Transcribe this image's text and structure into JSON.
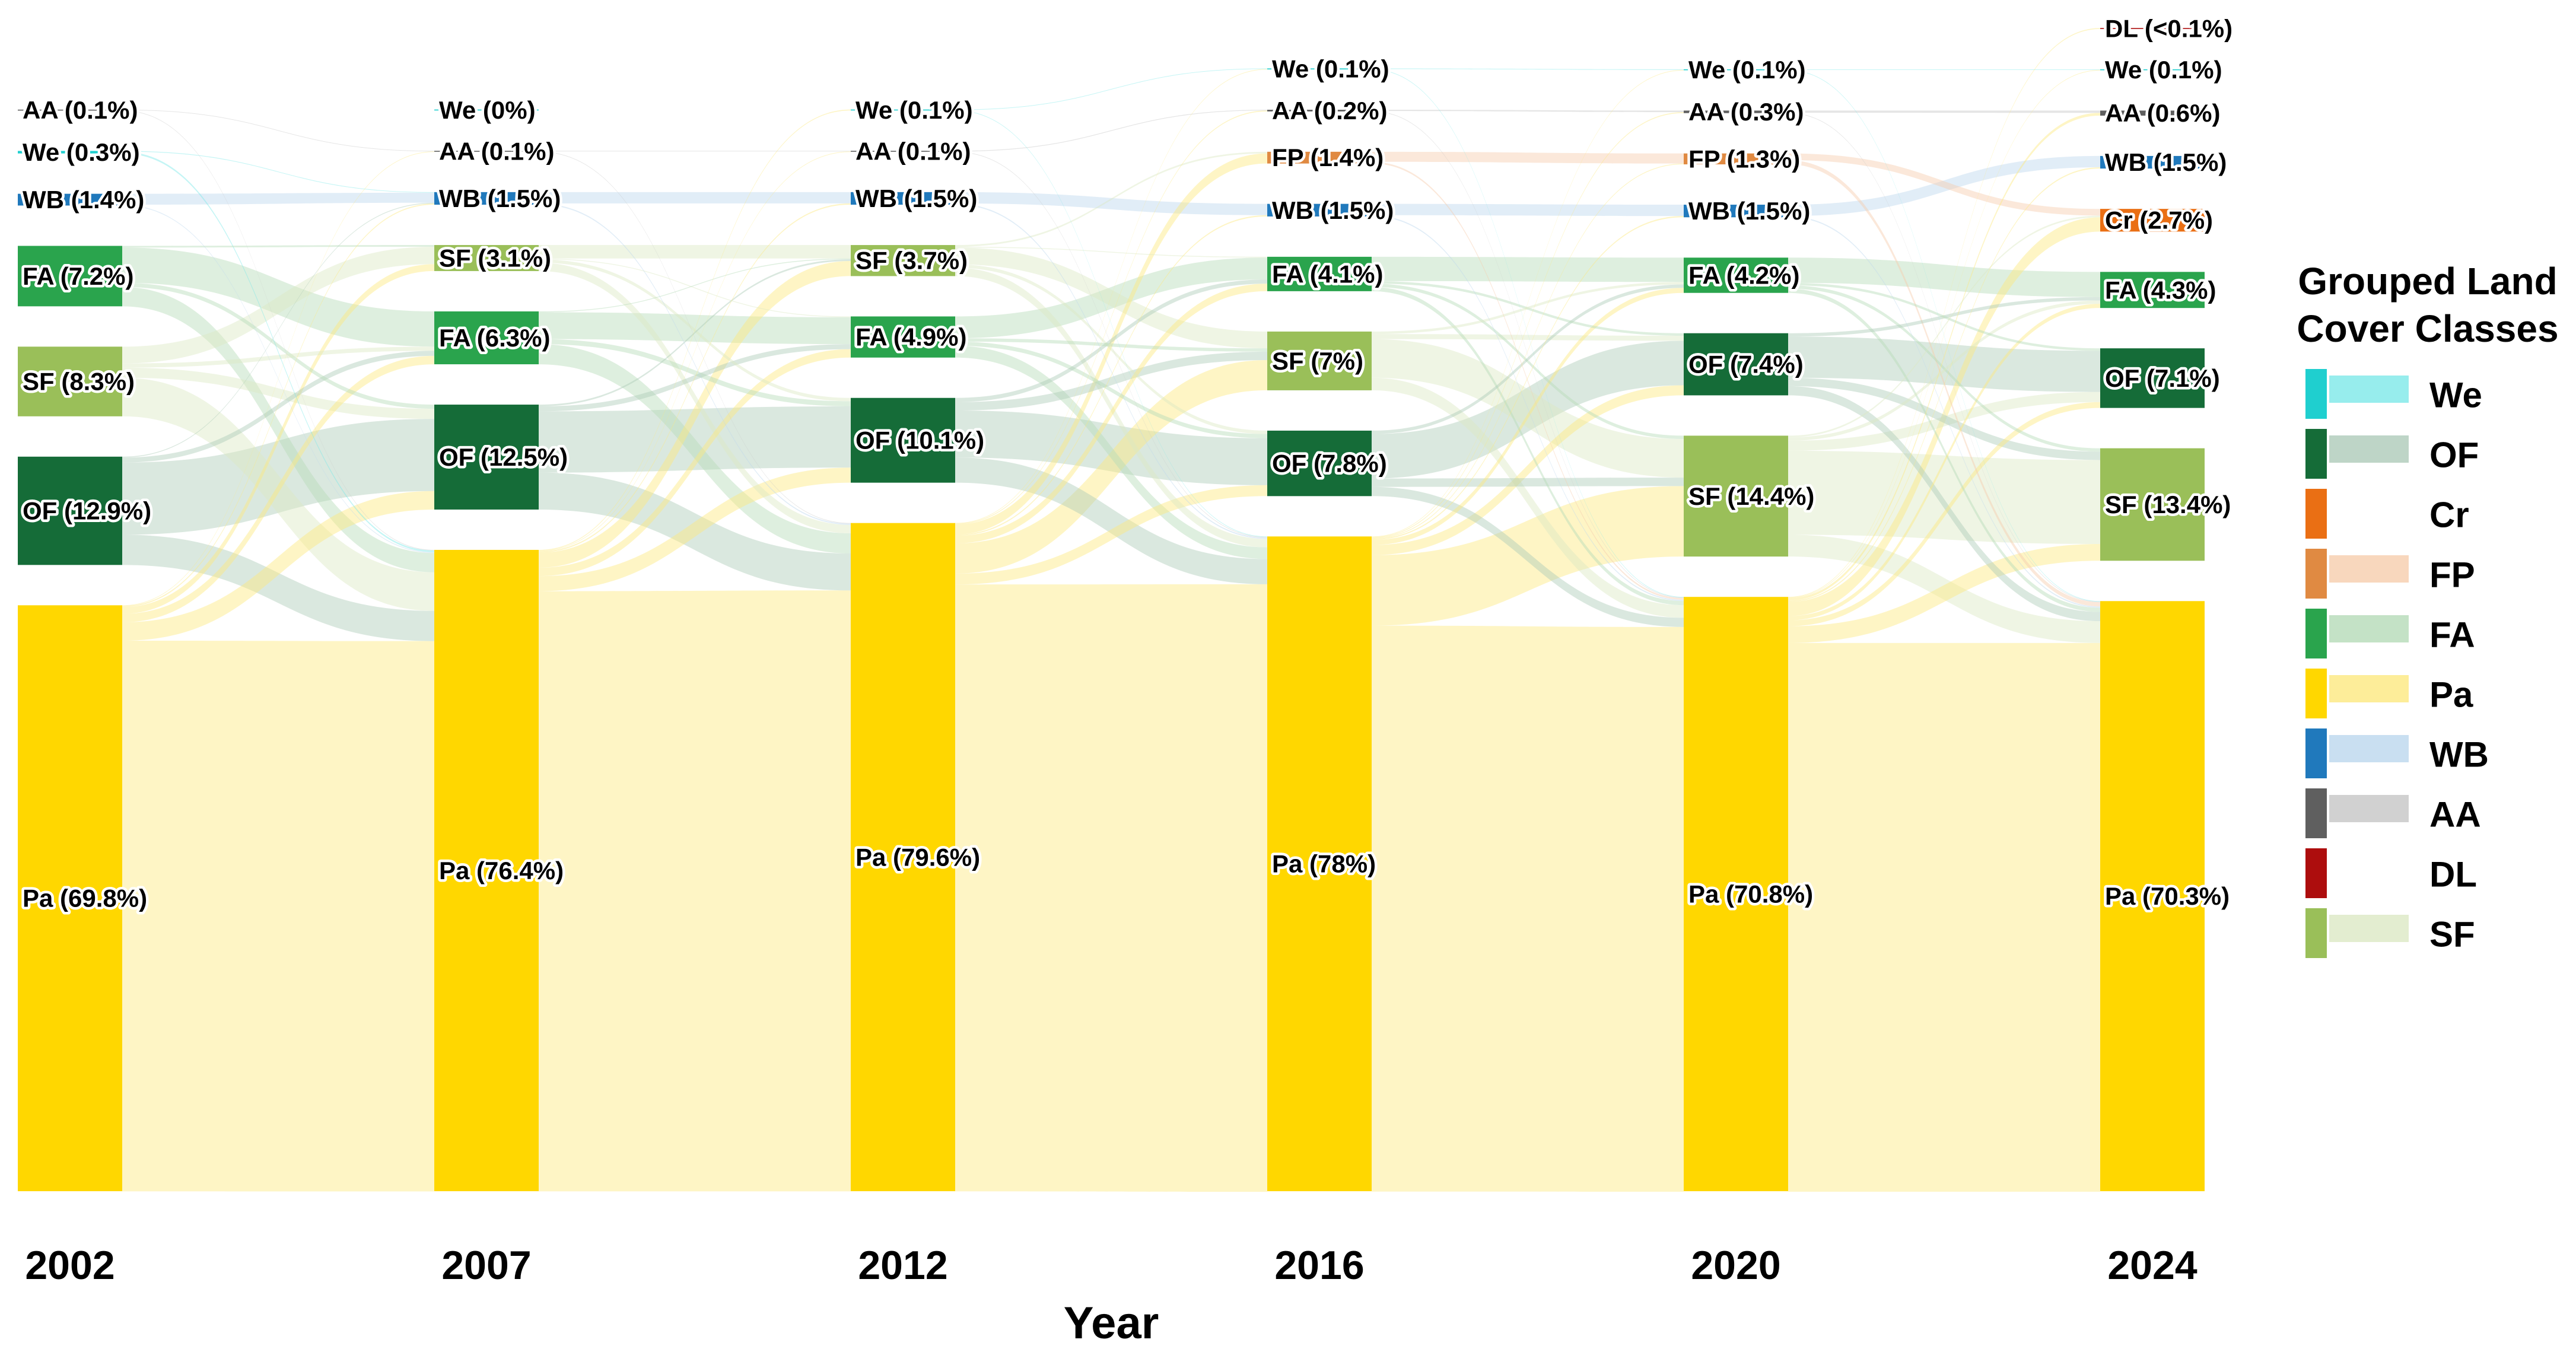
{
  "axis": {
    "xlabel": "Year"
  },
  "legend": {
    "title_line1": "Grouped Land",
    "title_line2": "Cover Classes",
    "items": [
      {
        "code": "We",
        "label": "We",
        "has_flow_swatch": true
      },
      {
        "code": "OF",
        "label": "OF",
        "has_flow_swatch": true
      },
      {
        "code": "Cr",
        "label": "Cr",
        "has_flow_swatch": false
      },
      {
        "code": "FP",
        "label": "FP",
        "has_flow_swatch": true
      },
      {
        "code": "FA",
        "label": "FA",
        "has_flow_swatch": true
      },
      {
        "code": "Pa",
        "label": "Pa",
        "has_flow_swatch": true
      },
      {
        "code": "WB",
        "label": "WB",
        "has_flow_swatch": true
      },
      {
        "code": "AA",
        "label": "AA",
        "has_flow_swatch": true
      },
      {
        "code": "DL",
        "label": "DL",
        "has_flow_swatch": false
      },
      {
        "code": "SF",
        "label": "SF",
        "has_flow_swatch": true
      }
    ]
  },
  "chart_data": {
    "type": "sankey",
    "title": "",
    "xlabel": "Year",
    "legend_title": "Grouped Land Cover Classes",
    "legend_position": "right",
    "years": [
      "2002",
      "2007",
      "2012",
      "2016",
      "2020",
      "2024"
    ],
    "colors": {
      "We": {
        "node": "#1FCFCF",
        "flow": "#7DE8E8"
      },
      "OF": {
        "node": "#156C38",
        "flow": "#AECBB9"
      },
      "Cr": {
        "node": "#EA6F14",
        "flow": "#F2A262"
      },
      "FP": {
        "node": "#E08A42",
        "flow": "#F6CDAC"
      },
      "FA": {
        "node": "#2AA44D",
        "flow": "#B5DBB8"
      },
      "Pa": {
        "node": "#FFD700",
        "flow": "#FCE97F"
      },
      "WB": {
        "node": "#2079BC",
        "flow": "#BCD7ED"
      },
      "AA": {
        "node": "#5F5F5F",
        "flow": "#C6C6C6"
      },
      "DL": {
        "node": "#AD0D0D",
        "flow": "#E39999"
      },
      "SF": {
        "node": "#9ABF59",
        "flow": "#DCE8C4"
      }
    },
    "columns": [
      {
        "year": "2002",
        "nodes": [
          {
            "c": "AA",
            "pct": 0.1,
            "label": "AA (0.1%)"
          },
          {
            "c": "We",
            "pct": 0.3,
            "label": "We (0.3%)"
          },
          {
            "c": "WB",
            "pct": 1.4,
            "label": "WB (1.4%)"
          },
          {
            "c": "FA",
            "pct": 7.2,
            "label": "FA (7.2%)"
          },
          {
            "c": "SF",
            "pct": 8.3,
            "label": "SF (8.3%)"
          },
          {
            "c": "OF",
            "pct": 12.9,
            "label": "OF (12.9%)"
          },
          {
            "c": "Pa",
            "pct": 69.8,
            "label": "Pa (69.8%)"
          }
        ]
      },
      {
        "year": "2007",
        "nodes": [
          {
            "c": "We",
            "pct": 0,
            "label": "We (0%)"
          },
          {
            "c": "AA",
            "pct": 0.1,
            "label": "AA (0.1%)"
          },
          {
            "c": "WB",
            "pct": 1.5,
            "label": "WB (1.5%)"
          },
          {
            "c": "SF",
            "pct": 3.1,
            "label": "SF (3.1%)"
          },
          {
            "c": "FA",
            "pct": 6.3,
            "label": "FA (6.3%)"
          },
          {
            "c": "OF",
            "pct": 12.5,
            "label": "OF (12.5%)"
          },
          {
            "c": "Pa",
            "pct": 76.4,
            "label": "Pa (76.4%)"
          }
        ]
      },
      {
        "year": "2012",
        "nodes": [
          {
            "c": "We",
            "pct": 0.1,
            "label": "We (0.1%)"
          },
          {
            "c": "AA",
            "pct": 0.1,
            "label": "AA (0.1%)"
          },
          {
            "c": "WB",
            "pct": 1.5,
            "label": "WB (1.5%)"
          },
          {
            "c": "SF",
            "pct": 3.7,
            "label": "SF (3.7%)"
          },
          {
            "c": "FA",
            "pct": 4.9,
            "label": "FA (4.9%)"
          },
          {
            "c": "OF",
            "pct": 10.1,
            "label": "OF (10.1%)"
          },
          {
            "c": "Pa",
            "pct": 79.6,
            "label": "Pa (79.6%)"
          }
        ]
      },
      {
        "year": "2016",
        "nodes": [
          {
            "c": "We",
            "pct": 0.1,
            "label": "We (0.1%)"
          },
          {
            "c": "AA",
            "pct": 0.2,
            "label": "AA (0.2%)"
          },
          {
            "c": "FP",
            "pct": 1.4,
            "label": "FP (1.4%)"
          },
          {
            "c": "WB",
            "pct": 1.5,
            "label": "WB (1.5%)"
          },
          {
            "c": "FA",
            "pct": 4.1,
            "label": "FA (4.1%)"
          },
          {
            "c": "SF",
            "pct": 7,
            "label": "SF (7%)"
          },
          {
            "c": "OF",
            "pct": 7.8,
            "label": "OF (7.8%)"
          },
          {
            "c": "Pa",
            "pct": 78,
            "label": "Pa (78%)"
          }
        ]
      },
      {
        "year": "2020",
        "nodes": [
          {
            "c": "We",
            "pct": 0.1,
            "label": "We (0.1%)"
          },
          {
            "c": "AA",
            "pct": 0.3,
            "label": "AA (0.3%)"
          },
          {
            "c": "FP",
            "pct": 1.3,
            "label": "FP (1.3%)"
          },
          {
            "c": "WB",
            "pct": 1.5,
            "label": "WB (1.5%)"
          },
          {
            "c": "FA",
            "pct": 4.2,
            "label": "FA (4.2%)"
          },
          {
            "c": "OF",
            "pct": 7.4,
            "label": "OF (7.4%)"
          },
          {
            "c": "SF",
            "pct": 14.4,
            "label": "SF (14.4%)"
          },
          {
            "c": "Pa",
            "pct": 70.8,
            "label": "Pa (70.8%)"
          }
        ]
      },
      {
        "year": "2024",
        "nodes": [
          {
            "c": "DL",
            "pct": 0.05,
            "label": "DL (<0.1%)"
          },
          {
            "c": "We",
            "pct": 0.1,
            "label": "We (0.1%)"
          },
          {
            "c": "AA",
            "pct": 0.6,
            "label": "AA (0.6%)"
          },
          {
            "c": "WB",
            "pct": 1.5,
            "label": "WB (1.5%)"
          },
          {
            "c": "Cr",
            "pct": 2.7,
            "label": "Cr (2.7%)"
          },
          {
            "c": "FA",
            "pct": 4.3,
            "label": "FA (4.3%)"
          },
          {
            "c": "OF",
            "pct": 7.1,
            "label": "OF (7.1%)"
          },
          {
            "c": "SF",
            "pct": 13.4,
            "label": "SF (13.4%)"
          },
          {
            "c": "Pa",
            "pct": 70.3,
            "label": "Pa (70.3%)"
          }
        ]
      }
    ],
    "links": [
      {
        "from_year": "2002",
        "to_year": "2007",
        "flows": [
          [
            "AA",
            "AA",
            0.06
          ],
          [
            "AA",
            "Pa",
            0.04
          ],
          [
            "We",
            "WB",
            0.08
          ],
          [
            "We",
            "Pa",
            0.2
          ],
          [
            "WB",
            "WB",
            1.3
          ],
          [
            "WB",
            "Pa",
            0.1
          ],
          [
            "FA",
            "FA",
            4.2
          ],
          [
            "FA",
            "OF",
            0.5
          ],
          [
            "FA",
            "Pa",
            2.3
          ],
          [
            "FA",
            "SF",
            0.2
          ],
          [
            "SF",
            "FA",
            0.5
          ],
          [
            "SF",
            "SF",
            2.0
          ],
          [
            "SF",
            "OF",
            1.2
          ],
          [
            "SF",
            "Pa",
            4.6
          ],
          [
            "OF",
            "FA",
            0.6
          ],
          [
            "OF",
            "OF",
            8.6
          ],
          [
            "OF",
            "Pa",
            3.6
          ],
          [
            "OF",
            "WB",
            0.1
          ],
          [
            "Pa",
            "WB",
            0.15
          ],
          [
            "Pa",
            "SF",
            0.8
          ],
          [
            "Pa",
            "FA",
            1.0
          ],
          [
            "Pa",
            "OF",
            2.2
          ],
          [
            "Pa",
            "Pa",
            65.6
          ],
          [
            "Pa",
            "AA",
            0.05
          ]
        ]
      },
      {
        "from_year": "2007",
        "to_year": "2012",
        "flows": [
          [
            "AA",
            "AA",
            0.05
          ],
          [
            "AA",
            "Pa",
            0.05
          ],
          [
            "WB",
            "WB",
            1.35
          ],
          [
            "WB",
            "Pa",
            0.15
          ],
          [
            "SF",
            "SF",
            1.6
          ],
          [
            "SF",
            "OF",
            0.4
          ],
          [
            "SF",
            "Pa",
            1.0
          ],
          [
            "SF",
            "FA",
            0.1
          ],
          [
            "FA",
            "FA",
            3.2
          ],
          [
            "FA",
            "OF",
            0.6
          ],
          [
            "FA",
            "Pa",
            2.4
          ],
          [
            "FA",
            "SF",
            0.1
          ],
          [
            "OF",
            "FA",
            0.6
          ],
          [
            "OF",
            "OF",
            7.3
          ],
          [
            "OF",
            "Pa",
            4.4
          ],
          [
            "OF",
            "SF",
            0.2
          ],
          [
            "Pa",
            "We",
            0.1
          ],
          [
            "Pa",
            "AA",
            0.05
          ],
          [
            "Pa",
            "WB",
            0.15
          ],
          [
            "Pa",
            "SF",
            1.8
          ],
          [
            "Pa",
            "FA",
            1.0
          ],
          [
            "Pa",
            "OF",
            1.8
          ],
          [
            "Pa",
            "Pa",
            71.5
          ]
        ]
      },
      {
        "from_year": "2012",
        "to_year": "2016",
        "flows": [
          [
            "We",
            "We",
            0.05
          ],
          [
            "We",
            "Pa",
            0.05
          ],
          [
            "AA",
            "AA",
            0.08
          ],
          [
            "AA",
            "Pa",
            0.02
          ],
          [
            "WB",
            "WB",
            1.35
          ],
          [
            "WB",
            "Pa",
            0.15
          ],
          [
            "SF",
            "FP",
            0.2
          ],
          [
            "SF",
            "SF",
            2.0
          ],
          [
            "SF",
            "OF",
            0.4
          ],
          [
            "SF",
            "Pa",
            1.0
          ],
          [
            "SF",
            "FA",
            0.1
          ],
          [
            "FA",
            "FA",
            2.6
          ],
          [
            "FA",
            "SF",
            0.4
          ],
          [
            "FA",
            "OF",
            0.5
          ],
          [
            "FA",
            "Pa",
            1.4
          ],
          [
            "OF",
            "FA",
            0.5
          ],
          [
            "OF",
            "OF",
            5.6
          ],
          [
            "OF",
            "SF",
            1.0
          ],
          [
            "OF",
            "Pa",
            3.0
          ],
          [
            "Pa",
            "We",
            0.05
          ],
          [
            "Pa",
            "AA",
            0.1
          ],
          [
            "Pa",
            "FP",
            1.2
          ],
          [
            "Pa",
            "WB",
            0.15
          ],
          [
            "Pa",
            "FA",
            0.9
          ],
          [
            "Pa",
            "SF",
            3.6
          ],
          [
            "Pa",
            "OF",
            1.3
          ],
          [
            "Pa",
            "Pa",
            72.3
          ]
        ]
      },
      {
        "from_year": "2016",
        "to_year": "2020",
        "flows": [
          [
            "We",
            "We",
            0.07
          ],
          [
            "We",
            "Pa",
            0.03
          ],
          [
            "AA",
            "AA",
            0.15
          ],
          [
            "AA",
            "Pa",
            0.05
          ],
          [
            "FP",
            "FP",
            1.2
          ],
          [
            "FP",
            "Pa",
            0.2
          ],
          [
            "WB",
            "WB",
            1.35
          ],
          [
            "WB",
            "Pa",
            0.15
          ],
          [
            "FA",
            "FA",
            2.9
          ],
          [
            "FA",
            "SF",
            0.4
          ],
          [
            "FA",
            "OF",
            0.3
          ],
          [
            "FA",
            "Pa",
            0.5
          ],
          [
            "SF",
            "FA",
            0.3
          ],
          [
            "SF",
            "SF",
            4.6
          ],
          [
            "SF",
            "OF",
            0.6
          ],
          [
            "SF",
            "Pa",
            1.5
          ],
          [
            "OF",
            "FA",
            0.4
          ],
          [
            "OF",
            "OF",
            5.3
          ],
          [
            "OF",
            "SF",
            1.0
          ],
          [
            "OF",
            "Pa",
            1.1
          ],
          [
            "Pa",
            "We",
            0.03
          ],
          [
            "Pa",
            "AA",
            0.1
          ],
          [
            "Pa",
            "FP",
            0.1
          ],
          [
            "Pa",
            "WB",
            0.15
          ],
          [
            "Pa",
            "FA",
            0.6
          ],
          [
            "Pa",
            "OF",
            1.2
          ],
          [
            "Pa",
            "SF",
            8.4
          ],
          [
            "Pa",
            "Pa",
            67.4
          ]
        ]
      },
      {
        "from_year": "2020",
        "to_year": "2024",
        "flows": [
          [
            "We",
            "We",
            0.07
          ],
          [
            "We",
            "Pa",
            0.03
          ],
          [
            "AA",
            "AA",
            0.25
          ],
          [
            "AA",
            "Pa",
            0.05
          ],
          [
            "FP",
            "Cr",
            0.8
          ],
          [
            "FP",
            "Pa",
            0.5
          ],
          [
            "WB",
            "WB",
            1.35
          ],
          [
            "WB",
            "Pa",
            0.15
          ],
          [
            "FA",
            "FA",
            3.0
          ],
          [
            "FA",
            "OF",
            0.3
          ],
          [
            "FA",
            "SF",
            0.4
          ],
          [
            "FA",
            "Pa",
            0.5
          ],
          [
            "OF",
            "FA",
            0.4
          ],
          [
            "OF",
            "OF",
            4.9
          ],
          [
            "OF",
            "SF",
            1.0
          ],
          [
            "OF",
            "Pa",
            1.1
          ],
          [
            "SF",
            "FA",
            0.4
          ],
          [
            "SF",
            "OF",
            1.2
          ],
          [
            "SF",
            "SF",
            10.0
          ],
          [
            "SF",
            "Pa",
            2.6
          ],
          [
            "SF",
            "Cr",
            0.2
          ],
          [
            "Pa",
            "DL",
            0.05
          ],
          [
            "Pa",
            "We",
            0.03
          ],
          [
            "Pa",
            "AA",
            0.3
          ],
          [
            "Pa",
            "WB",
            0.15
          ],
          [
            "Pa",
            "Cr",
            1.7
          ],
          [
            "Pa",
            "FA",
            0.5
          ],
          [
            "Pa",
            "OF",
            0.7
          ],
          [
            "Pa",
            "SF",
            2.0
          ],
          [
            "Pa",
            "Pa",
            65.4
          ]
        ]
      }
    ]
  }
}
